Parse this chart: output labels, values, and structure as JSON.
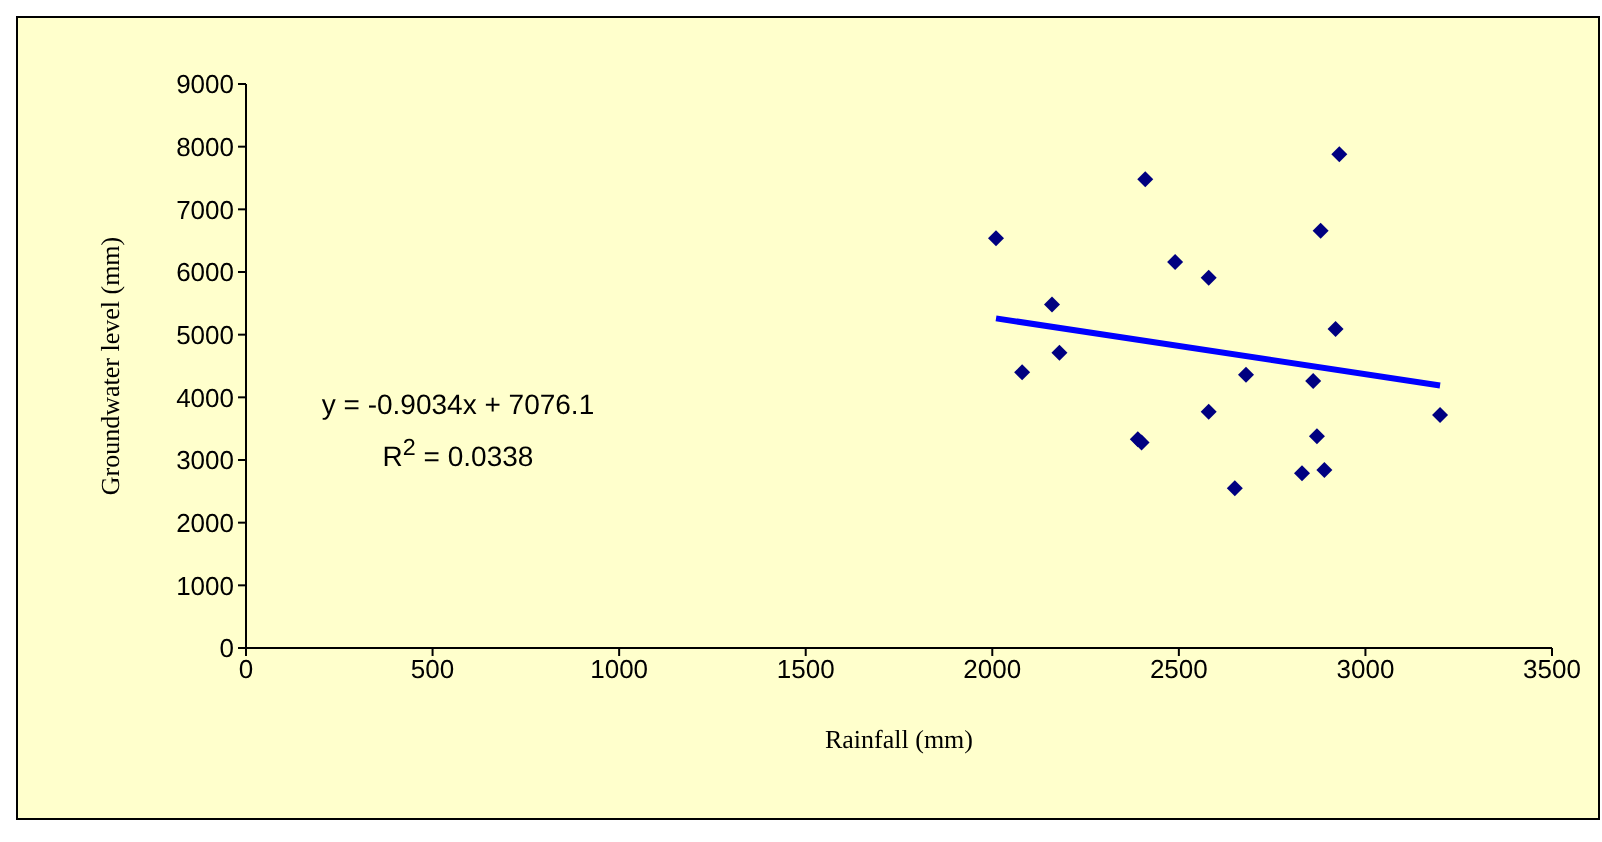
{
  "chart_data": {
    "type": "scatter",
    "xlabel": "Rainfall (mm)",
    "ylabel": "Groundwater level (mm)",
    "xlim": [
      0,
      3500
    ],
    "xticks": [
      0,
      500,
      1000,
      1500,
      2000,
      2500,
      3000,
      3500
    ],
    "ylim": [
      0,
      9000
    ],
    "yticks": [
      0,
      1000,
      2000,
      3000,
      4000,
      5000,
      6000,
      7000,
      8000,
      9000
    ],
    "grid": false,
    "legend": false,
    "annotations": [
      "y = -0.9034x + 7076.1",
      "R$^{2}$ = 0.0338"
    ],
    "series": [
      {
        "marker": "diamond",
        "color": "#000080",
        "x": [
          2010,
          2080,
          2160,
          2180,
          2410,
          2390,
          2400,
          2490,
          2580,
          2580,
          2650,
          2680,
          2830,
          2860,
          2870,
          2880,
          2890,
          2920,
          2930,
          3200
        ],
        "values": [
          6540,
          4400,
          5480,
          4710,
          7480,
          3330,
          3280,
          6160,
          5910,
          3770,
          2550,
          4360,
          2790,
          4260,
          3380,
          6660,
          2840,
          5090,
          7880,
          3720
        ]
      },
      {
        "type": "line",
        "marker": "none",
        "color": "#0000ff",
        "x": [
          2010,
          3200
        ],
        "values": [
          5260,
          4190
        ]
      }
    ]
  }
}
